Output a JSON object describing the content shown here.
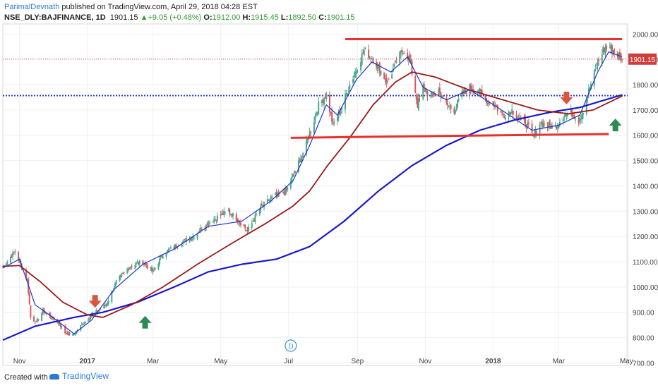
{
  "header": {
    "author": "ParimalDevnath",
    "published_text": " published on TradingView.com, April 29, 2018 04:28 EST",
    "symbol": "NSE_DLY:BAJFINANCE, 1D",
    "last": "1901.15",
    "change": "+9.05 (+0.48%)",
    "o_label": "O:",
    "o_value": "1912.00",
    "h_label": "H:",
    "h_value": "1915.45",
    "l_label": "L:",
    "l_value": "1892.50",
    "c_label": "C:",
    "c_value": "1901.15"
  },
  "footer": {
    "created_with": "Created with",
    "brand": "TradingView"
  },
  "colors": {
    "up_candle": "#4aa88e",
    "down_candle": "#d45b5b",
    "ema_short": "#1e35c8",
    "ema_mid": "#9a1a1a",
    "ema_long": "#1a1ac8",
    "resistance": "#e8322f",
    "support_hline": "#2838c8",
    "price_line": "#d23c3c",
    "arrow_down": "#d8553f",
    "arrow_up": "#2d8a52"
  },
  "chart_data": {
    "type": "candlestick",
    "title": "",
    "x_range": [
      "2016-10-17",
      "2018-05-02"
    ],
    "ylim": [
      690,
      2040
    ],
    "y_ticks": [
      700,
      800,
      900,
      1000,
      1100,
      1200,
      1300,
      1400,
      1500,
      1600,
      1700,
      1800,
      1900,
      2000
    ],
    "y_tick_labels": [
      "700.00",
      "800.00",
      "900.00",
      "1000.00",
      "1100.00",
      "1200.00",
      "1300.00",
      "1400.00",
      "1500.00",
      "1600.00",
      "1700.00",
      "1800.00",
      "1900.00",
      "2000.00"
    ],
    "x_ticks": [
      {
        "date": "2016-11-01",
        "label": "Nov"
      },
      {
        "date": "2017-01-01",
        "label": "2017"
      },
      {
        "date": "2017-03-01",
        "label": "Mar"
      },
      {
        "date": "2017-05-01",
        "label": "May"
      },
      {
        "date": "2017-07-01",
        "label": "Jul"
      },
      {
        "date": "2017-09-01",
        "label": "Sep"
      },
      {
        "date": "2017-11-01",
        "label": "Nov"
      },
      {
        "date": "2018-01-01",
        "label": "2018"
      },
      {
        "date": "2018-03-01",
        "label": "Mar"
      },
      {
        "date": "2018-05-01",
        "label": "May"
      }
    ],
    "price_anchors": [
      [
        "2016-10-17",
        1080
      ],
      [
        "2016-10-28",
        1140
      ],
      [
        "2016-11-08",
        1030
      ],
      [
        "2016-11-11",
        880
      ],
      [
        "2016-11-16",
        860
      ],
      [
        "2016-11-22",
        905
      ],
      [
        "2016-11-29",
        880
      ],
      [
        "2016-12-06",
        860
      ],
      [
        "2016-12-12",
        820
      ],
      [
        "2016-12-19",
        810
      ],
      [
        "2016-12-26",
        845
      ],
      [
        "2017-01-02",
        880
      ],
      [
        "2017-01-09",
        900
      ],
      [
        "2017-01-18",
        930
      ],
      [
        "2017-01-27",
        1020
      ],
      [
        "2017-02-08",
        1080
      ],
      [
        "2017-02-20",
        1100
      ],
      [
        "2017-03-01",
        1060
      ],
      [
        "2017-03-10",
        1130
      ],
      [
        "2017-03-24",
        1170
      ],
      [
        "2017-04-06",
        1200
      ],
      [
        "2017-04-21",
        1260
      ],
      [
        "2017-05-08",
        1300
      ],
      [
        "2017-05-18",
        1260
      ],
      [
        "2017-05-25",
        1220
      ],
      [
        "2017-06-05",
        1310
      ],
      [
        "2017-06-15",
        1350
      ],
      [
        "2017-06-29",
        1380
      ],
      [
        "2017-07-06",
        1450
      ],
      [
        "2017-07-14",
        1530
      ],
      [
        "2017-07-21",
        1620
      ],
      [
        "2017-07-28",
        1720
      ],
      [
        "2017-08-04",
        1760
      ],
      [
        "2017-08-10",
        1640
      ],
      [
        "2017-08-17",
        1700
      ],
      [
        "2017-08-24",
        1790
      ],
      [
        "2017-08-31",
        1860
      ],
      [
        "2017-09-07",
        1935
      ],
      [
        "2017-09-14",
        1910
      ],
      [
        "2017-09-21",
        1860
      ],
      [
        "2017-09-28",
        1810
      ],
      [
        "2017-10-05",
        1880
      ],
      [
        "2017-10-12",
        1940
      ],
      [
        "2017-10-18",
        1900
      ],
      [
        "2017-10-25",
        1720
      ],
      [
        "2017-10-30",
        1790
      ],
      [
        "2017-11-06",
        1750
      ],
      [
        "2017-11-13",
        1780
      ],
      [
        "2017-11-20",
        1720
      ],
      [
        "2017-11-27",
        1700
      ],
      [
        "2017-12-04",
        1760
      ],
      [
        "2017-12-11",
        1790
      ],
      [
        "2017-12-18",
        1780
      ],
      [
        "2017-12-26",
        1740
      ],
      [
        "2018-01-02",
        1720
      ],
      [
        "2018-01-10",
        1680
      ],
      [
        "2018-01-18",
        1700
      ],
      [
        "2018-01-25",
        1660
      ],
      [
        "2018-02-01",
        1640
      ],
      [
        "2018-02-06",
        1590
      ],
      [
        "2018-02-12",
        1650
      ],
      [
        "2018-02-19",
        1640
      ],
      [
        "2018-02-26",
        1630
      ],
      [
        "2018-03-05",
        1680
      ],
      [
        "2018-03-12",
        1690
      ],
      [
        "2018-03-19",
        1660
      ],
      [
        "2018-03-23",
        1700
      ],
      [
        "2018-03-29",
        1790
      ],
      [
        "2018-04-04",
        1870
      ],
      [
        "2018-04-10",
        1940
      ],
      [
        "2018-04-16",
        1950
      ],
      [
        "2018-04-20",
        1930
      ],
      [
        "2018-04-27",
        1901
      ]
    ],
    "ema_short": [
      [
        "2016-10-17",
        1075
      ],
      [
        "2016-11-01",
        1110
      ],
      [
        "2016-11-15",
        930
      ],
      [
        "2016-12-01",
        880
      ],
      [
        "2016-12-20",
        815
      ],
      [
        "2017-01-05",
        870
      ],
      [
        "2017-01-25",
        990
      ],
      [
        "2017-02-20",
        1090
      ],
      [
        "2017-03-20",
        1150
      ],
      [
        "2017-04-20",
        1240
      ],
      [
        "2017-05-20",
        1260
      ],
      [
        "2017-06-15",
        1340
      ],
      [
        "2017-07-05",
        1420
      ],
      [
        "2017-07-20",
        1560
      ],
      [
        "2017-08-04",
        1720
      ],
      [
        "2017-08-14",
        1680
      ],
      [
        "2017-08-31",
        1820
      ],
      [
        "2017-09-14",
        1890
      ],
      [
        "2017-10-01",
        1850
      ],
      [
        "2017-10-16",
        1910
      ],
      [
        "2017-10-30",
        1790
      ],
      [
        "2017-11-20",
        1740
      ],
      [
        "2017-12-11",
        1780
      ],
      [
        "2018-01-05",
        1710
      ],
      [
        "2018-02-05",
        1620
      ],
      [
        "2018-03-01",
        1640
      ],
      [
        "2018-03-20",
        1680
      ],
      [
        "2018-04-05",
        1850
      ],
      [
        "2018-04-15",
        1930
      ],
      [
        "2018-04-27",
        1910
      ]
    ],
    "ema_mid": [
      [
        "2016-10-17",
        1082
      ],
      [
        "2016-11-01",
        1085
      ],
      [
        "2016-11-20",
        1020
      ],
      [
        "2016-12-10",
        940
      ],
      [
        "2017-01-01",
        890
      ],
      [
        "2017-01-15",
        880
      ],
      [
        "2017-02-10",
        930
      ],
      [
        "2017-03-10",
        1000
      ],
      [
        "2017-04-10",
        1090
      ],
      [
        "2017-05-10",
        1170
      ],
      [
        "2017-06-10",
        1250
      ],
      [
        "2017-07-05",
        1320
      ],
      [
        "2017-07-20",
        1380
      ],
      [
        "2017-08-05",
        1480
      ],
      [
        "2017-08-25",
        1590
      ],
      [
        "2017-09-15",
        1720
      ],
      [
        "2017-10-05",
        1810
      ],
      [
        "2017-10-20",
        1850
      ],
      [
        "2017-11-10",
        1830
      ],
      [
        "2017-12-10",
        1780
      ],
      [
        "2018-01-10",
        1740
      ],
      [
        "2018-02-10",
        1700
      ],
      [
        "2018-03-10",
        1685
      ],
      [
        "2018-04-01",
        1700
      ],
      [
        "2018-04-27",
        1755
      ]
    ],
    "ema_long": [
      [
        "2016-10-17",
        790
      ],
      [
        "2016-11-15",
        845
      ],
      [
        "2016-12-20",
        880
      ],
      [
        "2017-01-15",
        900
      ],
      [
        "2017-02-15",
        940
      ],
      [
        "2017-03-20",
        1000
      ],
      [
        "2017-04-20",
        1060
      ],
      [
        "2017-05-20",
        1090
      ],
      [
        "2017-06-20",
        1110
      ],
      [
        "2017-07-20",
        1160
      ],
      [
        "2017-08-20",
        1260
      ],
      [
        "2017-09-20",
        1380
      ],
      [
        "2017-10-20",
        1480
      ],
      [
        "2017-11-20",
        1560
      ],
      [
        "2017-12-20",
        1620
      ],
      [
        "2018-01-20",
        1660
      ],
      [
        "2018-02-20",
        1690
      ],
      [
        "2018-03-20",
        1710
      ],
      [
        "2018-04-27",
        1760
      ]
    ],
    "annotations": {
      "resistance_line": {
        "from": [
          "2017-08-21",
          1980
        ],
        "to": [
          "2018-04-27",
          1980
        ]
      },
      "support_line": {
        "from": [
          "2017-07-03",
          1590
        ],
        "to": [
          "2018-04-15",
          1605
        ]
      },
      "horizontal_level": 1757,
      "last_price": 1901.15,
      "last_price_label": "1901.15",
      "arrows_down": [
        [
          "2017-01-08",
          918
        ],
        [
          "2018-03-08",
          1722
        ]
      ],
      "arrows_up": [
        [
          "2017-02-22",
          858
        ],
        [
          "2018-04-21",
          1638
        ]
      ],
      "dividend_marker": {
        "date": "2017-07-03",
        "label": "D"
      }
    }
  }
}
